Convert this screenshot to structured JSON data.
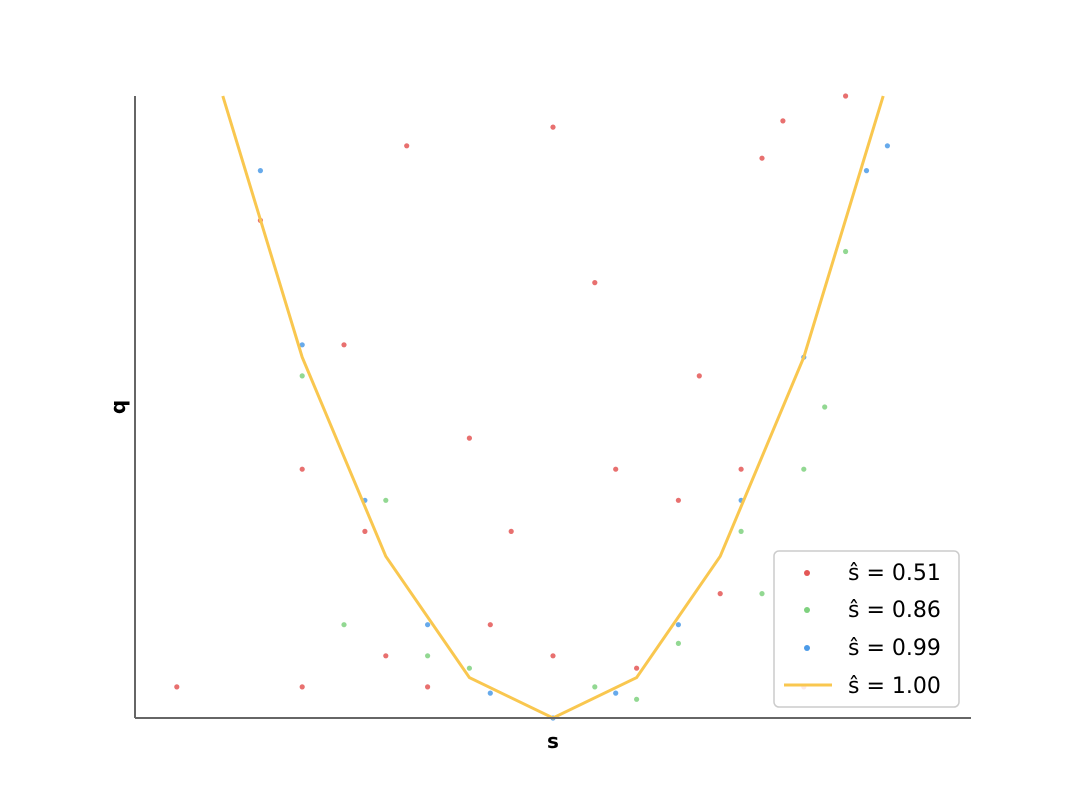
{
  "chart_data": {
    "type": "scatter",
    "title": "",
    "xlabel": "s",
    "ylabel": "q",
    "xlim": [
      -1.0,
      1.0
    ],
    "ylim": [
      0.0,
      1.0
    ],
    "x_ticks_visible": false,
    "y_ticks_visible": false,
    "grid": false,
    "legend_position": "bottom-right",
    "series": [
      {
        "name": "ŝ = 0.51",
        "kind": "scatter",
        "color": "#e45756",
        "values_note_key": "generated"
      },
      {
        "name": "ŝ = 0.86",
        "kind": "scatter",
        "color": "#7fd17f"
      },
      {
        "name": "ŝ = 0.99",
        "kind": "scatter",
        "color": "#4c9be8"
      },
      {
        "name": "ŝ = 1.00",
        "kind": "line",
        "color": "#f9c74f"
      }
    ],
    "curve": {
      "x": [
        -0.79,
        -0.6,
        -0.4,
        -0.2,
        0.0,
        0.2,
        0.4,
        0.6,
        0.79
      ],
      "y": [
        1.0,
        0.58,
        0.26,
        0.065,
        0.0,
        0.065,
        0.26,
        0.58,
        1.0
      ]
    },
    "points": {
      "red": [
        [
          -0.9,
          0.05
        ],
        [
          -0.6,
          0.05
        ],
        [
          -0.4,
          0.1
        ],
        [
          -0.3,
          0.05
        ],
        [
          -0.15,
          0.15
        ],
        [
          0.0,
          0.1
        ],
        [
          0.2,
          0.08
        ],
        [
          0.4,
          0.2
        ],
        [
          0.6,
          0.05
        ],
        [
          -0.5,
          0.6
        ],
        [
          -0.2,
          0.45
        ],
        [
          0.1,
          0.7
        ],
        [
          0.35,
          0.55
        ],
        [
          0.5,
          0.9
        ],
        [
          -0.7,
          0.8
        ],
        [
          -0.35,
          0.92
        ],
        [
          0.0,
          0.95
        ],
        [
          0.55,
          0.96
        ],
        [
          0.7,
          1.0
        ],
        [
          -0.45,
          0.3
        ],
        [
          0.3,
          0.35
        ],
        [
          -0.1,
          0.3
        ],
        [
          0.15,
          0.4
        ],
        [
          0.45,
          0.4
        ],
        [
          -0.6,
          0.4
        ]
      ],
      "green": [
        [
          -0.5,
          0.15
        ],
        [
          -0.3,
          0.1
        ],
        [
          0.1,
          0.05
        ],
        [
          0.3,
          0.12
        ],
        [
          0.5,
          0.2
        ],
        [
          0.6,
          0.4
        ],
        [
          -0.6,
          0.55
        ],
        [
          -0.4,
          0.35
        ],
        [
          0.45,
          0.3
        ],
        [
          0.7,
          0.75
        ],
        [
          -0.2,
          0.08
        ],
        [
          0.2,
          0.03
        ],
        [
          0.65,
          0.5
        ]
      ],
      "blue": [
        [
          -0.7,
          0.88
        ],
        [
          -0.6,
          0.6
        ],
        [
          -0.45,
          0.35
        ],
        [
          -0.3,
          0.15
        ],
        [
          -0.15,
          0.04
        ],
        [
          0.0,
          0.0
        ],
        [
          0.15,
          0.04
        ],
        [
          0.3,
          0.15
        ],
        [
          0.45,
          0.35
        ],
        [
          0.6,
          0.58
        ],
        [
          0.75,
          0.88
        ],
        [
          0.8,
          0.92
        ]
      ]
    }
  }
}
